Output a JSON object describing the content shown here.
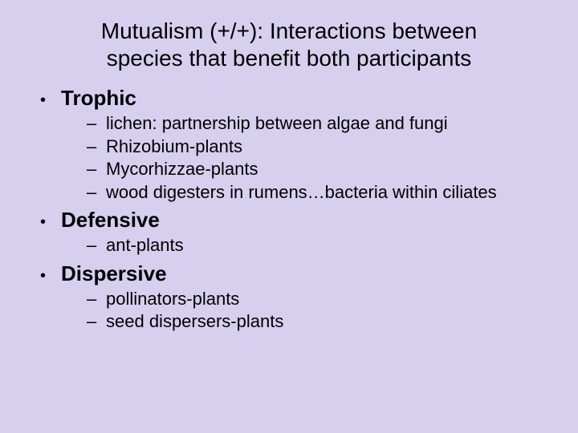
{
  "colors": {
    "background": "#d6cfee",
    "text": "#000000"
  },
  "typography": {
    "font_family": "Comic Sans MS",
    "title_fontsize": 28,
    "l1_fontsize": 26,
    "l2_fontsize": 22
  },
  "title": "Mutualism (+/+): Interactions between species that benefit both participants",
  "bullets": {
    "l1_marker": "•",
    "l2_marker": "–"
  },
  "items": [
    {
      "label": "Trophic",
      "sub": [
        "lichen: partnership between algae and fungi",
        "Rhizobium-plants",
        "Mycorhizzae-plants",
        "wood digesters in rumens…bacteria within ciliates"
      ]
    },
    {
      "label": "Defensive",
      "sub": [
        "ant-plants"
      ]
    },
    {
      "label": "Dispersive",
      "sub": [
        "pollinators-plants",
        "seed dispersers-plants"
      ]
    }
  ]
}
